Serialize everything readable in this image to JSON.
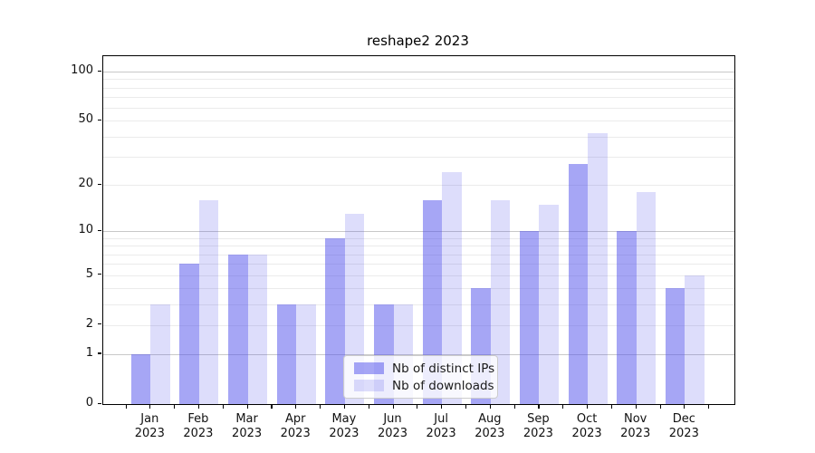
{
  "chart_data": {
    "type": "bar",
    "title": "reshape2 2023",
    "year": "2023",
    "categories": [
      "Jan",
      "Feb",
      "Mar",
      "Apr",
      "May",
      "Jun",
      "Jul",
      "Aug",
      "Sep",
      "Oct",
      "Nov",
      "Dec"
    ],
    "series": [
      {
        "name": "Nb of distinct IPs",
        "values": [
          1,
          6,
          7,
          3,
          9,
          3,
          16,
          4,
          10,
          27,
          10,
          4
        ],
        "color": "rgba(77,77,235,0.5)"
      },
      {
        "name": "Nb of downloads",
        "values": [
          3,
          16,
          7,
          3,
          13,
          3,
          24,
          16,
          15,
          42,
          18,
          5
        ],
        "color": "rgba(77,77,235,0.19)"
      }
    ],
    "y_scale": "log1p",
    "y_ticks": [
      0,
      1,
      2,
      5,
      10,
      20,
      50,
      100
    ],
    "y_minor_gridlines": [
      2,
      3,
      4,
      5,
      6,
      7,
      8,
      9,
      20,
      30,
      40,
      50,
      60,
      70,
      80,
      90
    ],
    "y_major_gridlines": [
      1,
      10,
      100
    ],
    "ylim": [
      0,
      125
    ],
    "xlabel": "",
    "ylabel": "",
    "grid": "both",
    "legend_position": "lower-center"
  },
  "colors": {
    "bar_fill_base": "#4d4deb",
    "grid_minor": "#ebebeb",
    "grid_major": "#c8c8c8",
    "spine": "#000000",
    "text": "#111111",
    "legend_border": "#cccccc"
  }
}
